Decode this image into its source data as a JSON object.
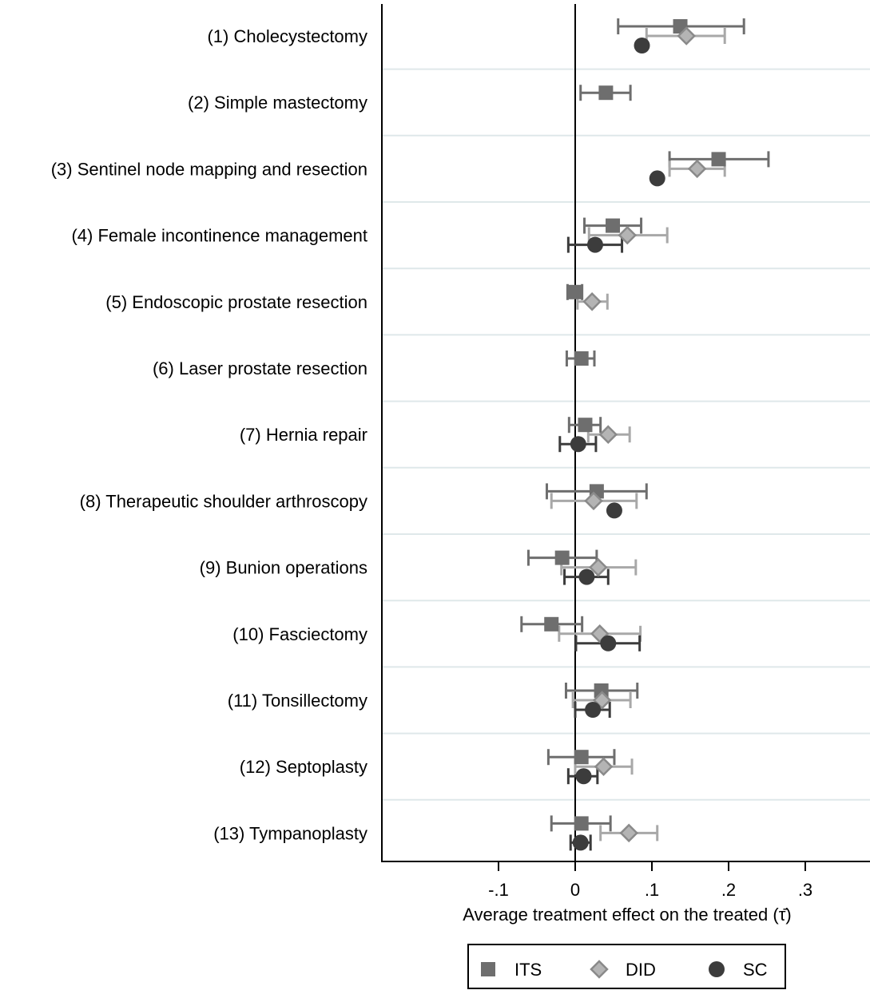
{
  "chart_data": {
    "type": "scatter",
    "orientation": "horizontal-forest-plot",
    "title": "",
    "xlabel": "Average treatment effect on the treated (τ̄)",
    "ylabel": "",
    "xlim": [
      -0.25,
      0.385
    ],
    "xticks": [
      -0.1,
      0,
      0.1,
      0.2,
      0.3
    ],
    "xtick_labels": [
      "-.1",
      "0",
      ".1",
      ".2",
      ".3"
    ],
    "reference_line": 0,
    "grid": "horizontal-between-rows",
    "legend_position": "bottom",
    "categories": [
      "(1) Cholecystectomy",
      "(2) Simple mastectomy",
      "(3) Sentinel node mapping and resection",
      "(4) Female incontinence management",
      "(5) Endoscopic prostate resection",
      "(6) Laser prostate resection",
      "(7) Hernia repair",
      "(8) Therapeutic shoulder arthroscopy",
      "(9) Bunion operations",
      "(10) Fasciectomy",
      "(11) Tonsillectomy",
      "(12) Septoplasty",
      "(13) Tympanoplasty"
    ],
    "series": [
      {
        "name": "ITS",
        "marker": "square",
        "color": "#6e6e6e",
        "values": [
          0.137,
          0.04,
          0.187,
          0.049,
          0.0,
          0.008,
          0.013,
          0.028,
          -0.017,
          -0.031,
          0.034,
          0.008,
          0.008
        ],
        "ci_low": [
          0.056,
          0.007,
          0.123,
          0.012,
          -0.01,
          -0.011,
          -0.008,
          -0.037,
          -0.061,
          -0.07,
          -0.012,
          -0.035,
          -0.031
        ],
        "ci_high": [
          0.22,
          0.072,
          0.252,
          0.086,
          0.009,
          0.025,
          0.033,
          0.093,
          0.028,
          0.009,
          0.081,
          0.051,
          0.046
        ]
      },
      {
        "name": "DID",
        "marker": "diamond",
        "color": "#a8a8a8",
        "values": [
          0.145,
          null,
          0.159,
          0.068,
          0.022,
          null,
          0.043,
          0.024,
          0.03,
          0.032,
          0.035,
          0.037,
          0.07
        ],
        "ci_low": [
          0.093,
          null,
          0.123,
          0.018,
          0.003,
          null,
          0.017,
          -0.031,
          -0.018,
          -0.021,
          -0.003,
          0.0,
          0.033
        ],
        "ci_high": [
          0.195,
          null,
          0.195,
          0.12,
          0.042,
          null,
          0.071,
          0.08,
          0.079,
          0.085,
          0.072,
          0.074,
          0.107
        ]
      },
      {
        "name": "SC",
        "marker": "circle",
        "color": "#3c3c3c",
        "values": [
          0.087,
          null,
          0.107,
          0.026,
          null,
          null,
          0.004,
          0.051,
          0.015,
          0.043,
          0.023,
          0.011,
          0.007
        ],
        "ci_low": [
          null,
          null,
          null,
          -0.009,
          null,
          null,
          -0.02,
          null,
          -0.014,
          0.001,
          0.0,
          -0.009,
          -0.006
        ],
        "ci_high": [
          null,
          null,
          null,
          0.061,
          null,
          null,
          0.027,
          null,
          0.043,
          0.084,
          0.045,
          0.029,
          0.02
        ]
      }
    ]
  }
}
